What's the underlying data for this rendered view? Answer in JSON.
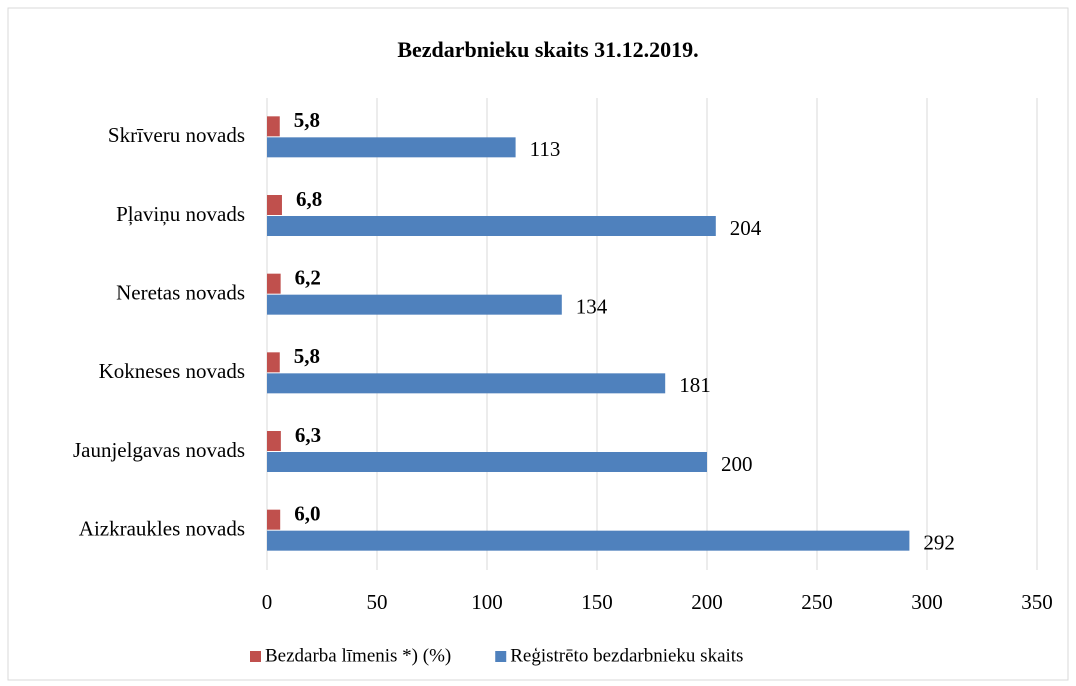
{
  "chart_data": {
    "type": "hbar",
    "title": "Bezdarbnieku skaits 31.12.2019.",
    "categories": [
      "Aizkraukles novads",
      "Jaunjelgavas novads",
      "Kokneses novads",
      "Neretas novads",
      "Pļaviņu novads",
      "Skrīveru novads"
    ],
    "series": [
      {
        "name": "Bezdarba līmenis *) (%)",
        "color": "#c0504d",
        "values": [
          6.0,
          6.3,
          5.8,
          6.2,
          6.8,
          5.8
        ],
        "value_labels": [
          "6,0",
          "6,3",
          "5,8",
          "6,2",
          "6,8",
          "5,8"
        ]
      },
      {
        "name": "Reģistrēto bezdarbnieku skaits",
        "color": "#4f81bd",
        "values": [
          292,
          200,
          181,
          134,
          204,
          113
        ]
      }
    ],
    "xlim": [
      0,
      350
    ],
    "xticks": [
      0,
      50,
      100,
      150,
      200,
      250,
      300,
      350
    ],
    "grid": true,
    "legend": "bottom"
  }
}
